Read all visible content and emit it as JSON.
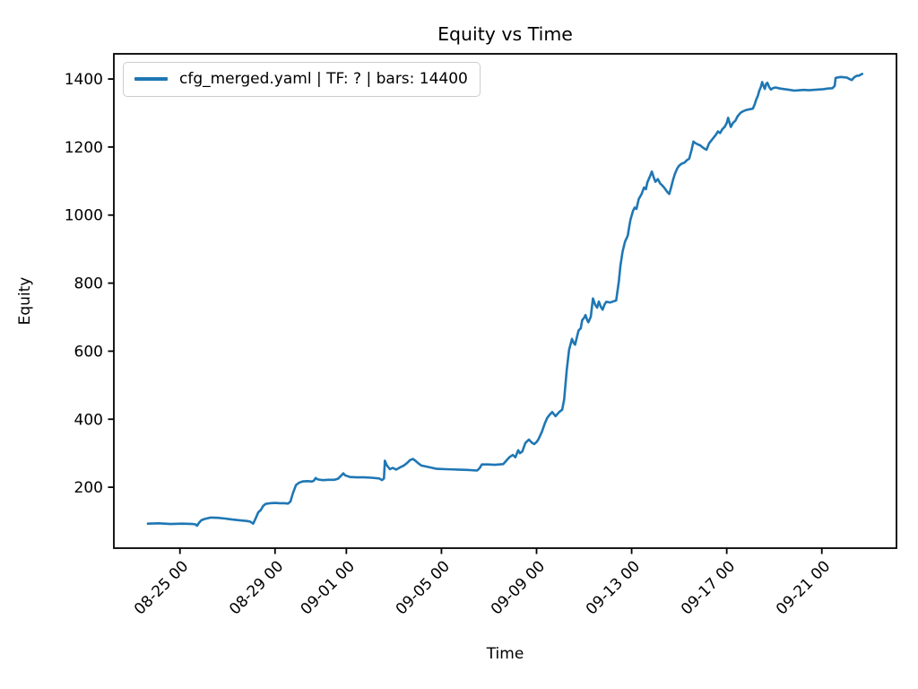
{
  "chart_data": {
    "type": "line",
    "title": "Equity vs Time",
    "xlabel": "Time",
    "ylabel": "Equity",
    "grid": false,
    "legend_position": "upper left",
    "line_color": "#1f77b4",
    "x_axis": {
      "unit": "days since 08-22 00:00, labels formatted MM-DD HH",
      "lim": [
        0.22,
        33.14
      ],
      "ticks": [
        {
          "t": 3,
          "label": "08-25 00"
        },
        {
          "t": 7,
          "label": "08-29 00"
        },
        {
          "t": 10,
          "label": "09-01 00"
        },
        {
          "t": 14,
          "label": "09-05 00"
        },
        {
          "t": 18,
          "label": "09-09 00"
        },
        {
          "t": 22,
          "label": "09-13 00"
        },
        {
          "t": 26,
          "label": "09-17 00"
        },
        {
          "t": 30,
          "label": "09-21 00"
        }
      ]
    },
    "y_axis": {
      "lim": [
        21,
        1474
      ],
      "ticks": [
        200,
        400,
        600,
        800,
        1000,
        1200,
        1400
      ]
    },
    "series": [
      {
        "name": "cfg_merged.yaml | TF: ? | bars: 14400",
        "color": "#1f77b4",
        "points": [
          [
            1.65,
            93
          ],
          [
            2.1,
            94
          ],
          [
            2.6,
            92
          ],
          [
            3.1,
            93
          ],
          [
            3.55,
            92
          ],
          [
            3.65,
            91
          ],
          [
            3.72,
            87
          ],
          [
            3.8,
            95
          ],
          [
            3.9,
            103
          ],
          [
            4.05,
            107
          ],
          [
            4.3,
            111
          ],
          [
            4.6,
            110
          ],
          [
            4.9,
            108
          ],
          [
            5.2,
            105
          ],
          [
            5.5,
            103
          ],
          [
            5.8,
            101
          ],
          [
            5.95,
            99
          ],
          [
            6.08,
            93
          ],
          [
            6.18,
            108
          ],
          [
            6.29,
            126
          ],
          [
            6.4,
            133
          ],
          [
            6.5,
            145
          ],
          [
            6.6,
            151
          ],
          [
            6.8,
            153
          ],
          [
            7.0,
            154
          ],
          [
            7.2,
            153
          ],
          [
            7.4,
            153
          ],
          [
            7.55,
            152
          ],
          [
            7.65,
            158
          ],
          [
            7.75,
            182
          ],
          [
            7.88,
            206
          ],
          [
            8.0,
            213
          ],
          [
            8.15,
            217
          ],
          [
            8.35,
            218
          ],
          [
            8.55,
            217
          ],
          [
            8.63,
            219
          ],
          [
            8.71,
            227
          ],
          [
            8.8,
            223
          ],
          [
            9.0,
            221
          ],
          [
            9.25,
            222
          ],
          [
            9.5,
            222
          ],
          [
            9.65,
            225
          ],
          [
            9.78,
            234
          ],
          [
            9.87,
            241
          ],
          [
            9.95,
            235
          ],
          [
            10.15,
            230
          ],
          [
            10.45,
            229
          ],
          [
            10.75,
            229
          ],
          [
            11.05,
            228
          ],
          [
            11.38,
            226
          ],
          [
            11.5,
            221
          ],
          [
            11.58,
            226
          ],
          [
            11.62,
            278
          ],
          [
            11.7,
            265
          ],
          [
            11.83,
            253
          ],
          [
            11.95,
            257
          ],
          [
            12.1,
            252
          ],
          [
            12.25,
            258
          ],
          [
            12.4,
            263
          ],
          [
            12.55,
            271
          ],
          [
            12.68,
            280
          ],
          [
            12.8,
            283
          ],
          [
            12.9,
            278
          ],
          [
            13.0,
            272
          ],
          [
            13.15,
            264
          ],
          [
            13.35,
            261
          ],
          [
            13.55,
            258
          ],
          [
            13.8,
            254
          ],
          [
            14.2,
            253
          ],
          [
            14.65,
            252
          ],
          [
            15.1,
            251
          ],
          [
            15.5,
            249
          ],
          [
            15.6,
            256
          ],
          [
            15.7,
            267
          ],
          [
            15.95,
            267
          ],
          [
            16.25,
            266
          ],
          [
            16.6,
            268
          ],
          [
            16.75,
            280
          ],
          [
            16.87,
            289
          ],
          [
            17.0,
            295
          ],
          [
            17.11,
            288
          ],
          [
            17.23,
            309
          ],
          [
            17.3,
            300
          ],
          [
            17.4,
            305
          ],
          [
            17.53,
            330
          ],
          [
            17.68,
            340
          ],
          [
            17.8,
            331
          ],
          [
            17.9,
            327
          ],
          [
            18.0,
            333
          ],
          [
            18.08,
            341
          ],
          [
            18.22,
            362
          ],
          [
            18.35,
            388
          ],
          [
            18.45,
            404
          ],
          [
            18.55,
            413
          ],
          [
            18.66,
            421
          ],
          [
            18.8,
            409
          ],
          [
            18.95,
            421
          ],
          [
            19.08,
            428
          ],
          [
            19.16,
            458
          ],
          [
            19.27,
            545
          ],
          [
            19.37,
            604
          ],
          [
            19.49,
            636
          ],
          [
            19.56,
            624
          ],
          [
            19.62,
            619
          ],
          [
            19.7,
            642
          ],
          [
            19.77,
            661
          ],
          [
            19.86,
            667
          ],
          [
            19.92,
            691
          ],
          [
            20.0,
            698
          ],
          [
            20.06,
            706
          ],
          [
            20.13,
            691
          ],
          [
            20.18,
            685
          ],
          [
            20.28,
            701
          ],
          [
            20.37,
            755
          ],
          [
            20.47,
            736
          ],
          [
            20.55,
            728
          ],
          [
            20.62,
            746
          ],
          [
            20.7,
            731
          ],
          [
            20.78,
            722
          ],
          [
            20.86,
            737
          ],
          [
            20.93,
            745
          ],
          [
            21.1,
            743
          ],
          [
            21.35,
            749
          ],
          [
            21.46,
            805
          ],
          [
            21.53,
            852
          ],
          [
            21.62,
            893
          ],
          [
            21.72,
            922
          ],
          [
            21.84,
            940
          ],
          [
            21.9,
            966
          ],
          [
            21.95,
            987
          ],
          [
            22.06,
            1013
          ],
          [
            22.13,
            1022
          ],
          [
            22.2,
            1018
          ],
          [
            22.3,
            1047
          ],
          [
            22.42,
            1062
          ],
          [
            22.52,
            1081
          ],
          [
            22.6,
            1076
          ],
          [
            22.66,
            1096
          ],
          [
            22.76,
            1112
          ],
          [
            22.85,
            1128
          ],
          [
            22.93,
            1111
          ],
          [
            23.0,
            1098
          ],
          [
            23.1,
            1106
          ],
          [
            23.2,
            1093
          ],
          [
            23.3,
            1086
          ],
          [
            23.4,
            1078
          ],
          [
            23.5,
            1068
          ],
          [
            23.58,
            1062
          ],
          [
            23.66,
            1081
          ],
          [
            23.73,
            1101
          ],
          [
            23.82,
            1121
          ],
          [
            23.91,
            1136
          ],
          [
            23.99,
            1145
          ],
          [
            24.1,
            1151
          ],
          [
            24.22,
            1154
          ],
          [
            24.32,
            1161
          ],
          [
            24.42,
            1166
          ],
          [
            24.52,
            1191
          ],
          [
            24.6,
            1216
          ],
          [
            24.67,
            1212
          ],
          [
            24.78,
            1208
          ],
          [
            24.88,
            1205
          ],
          [
            24.97,
            1200
          ],
          [
            25.07,
            1195
          ],
          [
            25.15,
            1192
          ],
          [
            25.26,
            1211
          ],
          [
            25.35,
            1219
          ],
          [
            25.44,
            1227
          ],
          [
            25.54,
            1236
          ],
          [
            25.63,
            1246
          ],
          [
            25.72,
            1241
          ],
          [
            25.82,
            1253
          ],
          [
            25.91,
            1259
          ],
          [
            26.0,
            1271
          ],
          [
            26.06,
            1286
          ],
          [
            26.11,
            1273
          ],
          [
            26.17,
            1259
          ],
          [
            26.26,
            1271
          ],
          [
            26.36,
            1277
          ],
          [
            26.46,
            1291
          ],
          [
            26.56,
            1299
          ],
          [
            26.63,
            1303
          ],
          [
            26.72,
            1306
          ],
          [
            26.82,
            1309
          ],
          [
            26.96,
            1311
          ],
          [
            27.1,
            1313
          ],
          [
            27.18,
            1326
          ],
          [
            27.23,
            1338
          ],
          [
            27.31,
            1351
          ],
          [
            27.37,
            1366
          ],
          [
            27.43,
            1376
          ],
          [
            27.49,
            1391
          ],
          [
            27.55,
            1379
          ],
          [
            27.6,
            1371
          ],
          [
            27.66,
            1386
          ],
          [
            27.71,
            1389
          ],
          [
            27.79,
            1376
          ],
          [
            27.86,
            1369
          ],
          [
            27.94,
            1373
          ],
          [
            28.05,
            1375
          ],
          [
            28.25,
            1372
          ],
          [
            28.45,
            1370
          ],
          [
            28.65,
            1368
          ],
          [
            28.85,
            1366
          ],
          [
            29.05,
            1367
          ],
          [
            29.25,
            1368
          ],
          [
            29.45,
            1367
          ],
          [
            29.65,
            1368
          ],
          [
            29.85,
            1369
          ],
          [
            30.05,
            1370
          ],
          [
            30.25,
            1372
          ],
          [
            30.45,
            1373
          ],
          [
            30.54,
            1380
          ],
          [
            30.58,
            1403
          ],
          [
            30.7,
            1405
          ],
          [
            30.82,
            1406
          ],
          [
            30.94,
            1405
          ],
          [
            31.06,
            1404
          ],
          [
            31.16,
            1400
          ],
          [
            31.26,
            1397
          ],
          [
            31.36,
            1405
          ],
          [
            31.46,
            1409
          ],
          [
            31.56,
            1410
          ],
          [
            31.7,
            1415
          ]
        ]
      }
    ]
  }
}
